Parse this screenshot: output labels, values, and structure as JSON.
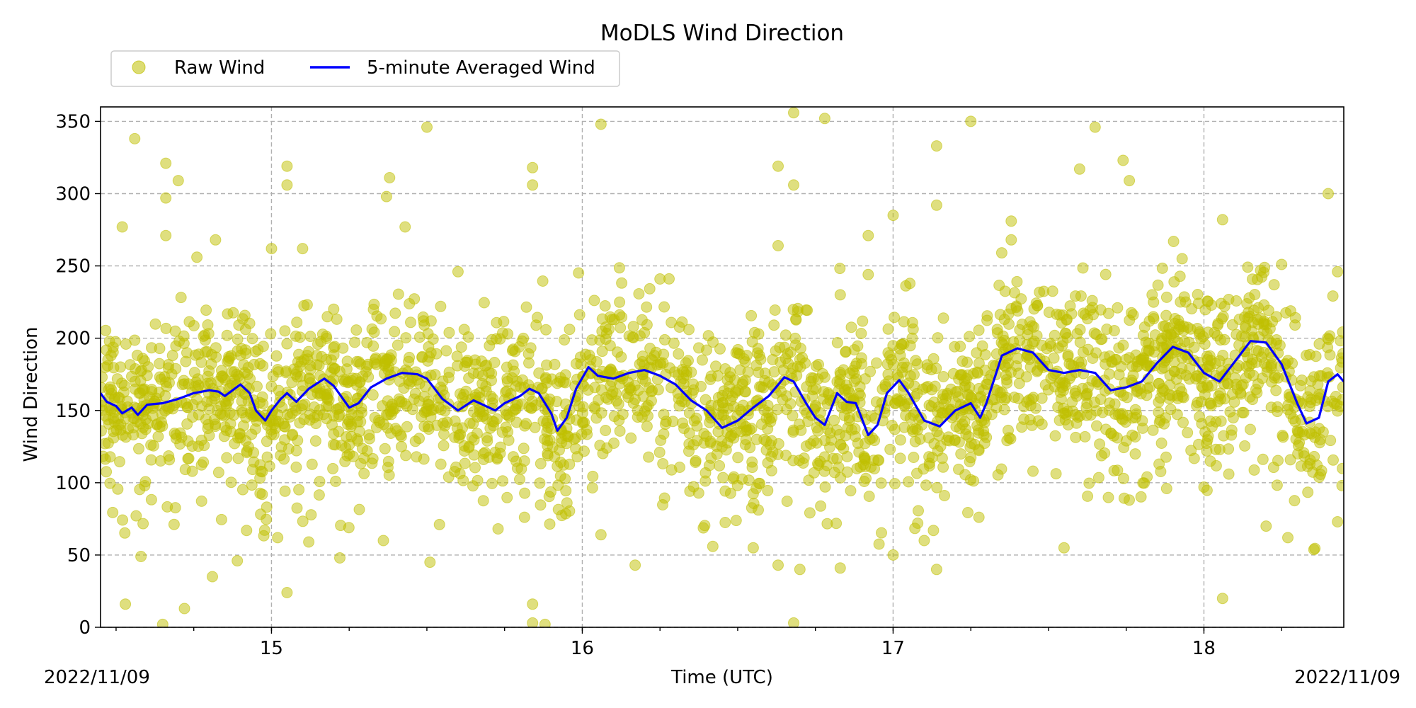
{
  "chart_data": {
    "type": "scatter",
    "title": "MoDLS Wind Direction",
    "xlabel": "Time (UTC)",
    "ylabel": "Wind Direction",
    "xlim": [
      14.45,
      18.45
    ],
    "ylim": [
      0,
      360
    ],
    "x_major_ticks": [
      15,
      16,
      17,
      18
    ],
    "x_tick_labels": [
      "15",
      "16",
      "17",
      "18"
    ],
    "x_minor_step": 0.25,
    "y_ticks": [
      0,
      50,
      100,
      150,
      200,
      250,
      300,
      350
    ],
    "y_tick_labels": [
      "0",
      "50",
      "100",
      "150",
      "200",
      "250",
      "300",
      "350"
    ],
    "x_corner_labels": {
      "left": "2022/11/09",
      "right": "2022/11/09"
    },
    "grid": true,
    "legend": {
      "placement": "top-left outside",
      "entries": [
        {
          "label": "Raw Wind",
          "marker": "circle",
          "color": "#bfbf00"
        },
        {
          "label": "5-minute Averaged Wind",
          "marker": "line",
          "color": "#0000ff"
        }
      ]
    },
    "series": [
      {
        "name": "Raw Wind",
        "kind": "scatter",
        "color": "#bfbf00",
        "dense_band_note": "dense cloud around the averaged line",
        "outliers": [
          [
            14.52,
            277
          ],
          [
            14.53,
            16
          ],
          [
            14.56,
            338
          ],
          [
            14.58,
            49
          ],
          [
            14.65,
            2
          ],
          [
            14.66,
            321
          ],
          [
            14.66,
            297
          ],
          [
            14.66,
            271
          ],
          [
            14.7,
            309
          ],
          [
            14.72,
            13
          ],
          [
            14.76,
            256
          ],
          [
            14.81,
            35
          ],
          [
            14.82,
            268
          ],
          [
            14.89,
            46
          ],
          [
            14.92,
            67
          ],
          [
            15.0,
            262
          ],
          [
            15.02,
            62
          ],
          [
            15.05,
            319
          ],
          [
            15.05,
            306
          ],
          [
            15.05,
            24
          ],
          [
            15.1,
            262
          ],
          [
            15.12,
            59
          ],
          [
            15.22,
            48
          ],
          [
            15.38,
            311
          ],
          [
            15.37,
            298
          ],
          [
            15.36,
            60
          ],
          [
            15.43,
            277
          ],
          [
            15.5,
            346
          ],
          [
            15.51,
            45
          ],
          [
            15.6,
            246
          ],
          [
            15.84,
            318
          ],
          [
            15.84,
            306
          ],
          [
            15.84,
            16
          ],
          [
            15.84,
            3
          ],
          [
            15.88,
            2
          ],
          [
            16.06,
            348
          ],
          [
            16.06,
            64
          ],
          [
            16.17,
            43
          ],
          [
            16.25,
            241
          ],
          [
            16.42,
            56
          ],
          [
            16.55,
            55
          ],
          [
            16.63,
            319
          ],
          [
            16.63,
            264
          ],
          [
            16.63,
            43
          ],
          [
            16.68,
            356
          ],
          [
            16.68,
            306
          ],
          [
            16.68,
            3
          ],
          [
            16.7,
            40
          ],
          [
            16.78,
            352
          ],
          [
            16.83,
            230
          ],
          [
            16.83,
            41
          ],
          [
            16.92,
            271
          ],
          [
            16.92,
            244
          ],
          [
            17.0,
            285
          ],
          [
            17.0,
            50
          ],
          [
            17.1,
            60
          ],
          [
            17.14,
            333
          ],
          [
            17.14,
            292
          ],
          [
            17.14,
            40
          ],
          [
            17.25,
            350
          ],
          [
            17.38,
            281
          ],
          [
            17.38,
            268
          ],
          [
            17.45,
            108
          ],
          [
            17.55,
            55
          ],
          [
            17.6,
            317
          ],
          [
            17.65,
            346
          ],
          [
            17.74,
            323
          ],
          [
            17.76,
            309
          ],
          [
            17.88,
            96
          ],
          [
            17.93,
            255
          ],
          [
            18.0,
            97
          ],
          [
            18.06,
            20
          ],
          [
            18.06,
            282
          ],
          [
            18.08,
            106
          ],
          [
            18.2,
            70
          ],
          [
            18.25,
            251
          ],
          [
            18.27,
            62
          ],
          [
            18.4,
            300
          ],
          [
            18.43,
            246
          ],
          [
            18.43,
            73
          ]
        ]
      },
      {
        "name": "5-minute Averaged Wind",
        "kind": "line",
        "color": "#0000ff",
        "points": [
          [
            14.45,
            162
          ],
          [
            14.47,
            156
          ],
          [
            14.5,
            153
          ],
          [
            14.52,
            148
          ],
          [
            14.55,
            152
          ],
          [
            14.57,
            147
          ],
          [
            14.6,
            154
          ],
          [
            14.65,
            155
          ],
          [
            14.7,
            158
          ],
          [
            14.75,
            162
          ],
          [
            14.8,
            164
          ],
          [
            14.83,
            163
          ],
          [
            14.85,
            160
          ],
          [
            14.9,
            168
          ],
          [
            14.93,
            162
          ],
          [
            14.95,
            150
          ],
          [
            14.98,
            143
          ],
          [
            15.0,
            150
          ],
          [
            15.03,
            158
          ],
          [
            15.05,
            162
          ],
          [
            15.08,
            156
          ],
          [
            15.12,
            165
          ],
          [
            15.17,
            172
          ],
          [
            15.2,
            167
          ],
          [
            15.25,
            152
          ],
          [
            15.28,
            155
          ],
          [
            15.32,
            166
          ],
          [
            15.37,
            172
          ],
          [
            15.42,
            176
          ],
          [
            15.47,
            175
          ],
          [
            15.5,
            172
          ],
          [
            15.55,
            158
          ],
          [
            15.6,
            150
          ],
          [
            15.65,
            157
          ],
          [
            15.68,
            154
          ],
          [
            15.72,
            150
          ],
          [
            15.75,
            155
          ],
          [
            15.8,
            160
          ],
          [
            15.83,
            165
          ],
          [
            15.86,
            162
          ],
          [
            15.9,
            148
          ],
          [
            15.92,
            136
          ],
          [
            15.95,
            145
          ],
          [
            15.98,
            165
          ],
          [
            16.02,
            180
          ],
          [
            16.05,
            174
          ],
          [
            16.1,
            172
          ],
          [
            16.15,
            176
          ],
          [
            16.2,
            178
          ],
          [
            16.25,
            174
          ],
          [
            16.3,
            168
          ],
          [
            16.35,
            157
          ],
          [
            16.4,
            150
          ],
          [
            16.45,
            138
          ],
          [
            16.5,
            143
          ],
          [
            16.55,
            152
          ],
          [
            16.6,
            160
          ],
          [
            16.65,
            173
          ],
          [
            16.68,
            170
          ],
          [
            16.72,
            155
          ],
          [
            16.75,
            145
          ],
          [
            16.78,
            140
          ],
          [
            16.82,
            162
          ],
          [
            16.85,
            156
          ],
          [
            16.88,
            155
          ],
          [
            16.92,
            133
          ],
          [
            16.95,
            140
          ],
          [
            16.98,
            162
          ],
          [
            17.02,
            171
          ],
          [
            17.05,
            162
          ],
          [
            17.1,
            143
          ],
          [
            17.15,
            139
          ],
          [
            17.2,
            150
          ],
          [
            17.25,
            155
          ],
          [
            17.28,
            145
          ],
          [
            17.3,
            155
          ],
          [
            17.35,
            188
          ],
          [
            17.4,
            193
          ],
          [
            17.45,
            190
          ],
          [
            17.5,
            178
          ],
          [
            17.55,
            176
          ],
          [
            17.6,
            178
          ],
          [
            17.65,
            176
          ],
          [
            17.7,
            164
          ],
          [
            17.75,
            166
          ],
          [
            17.8,
            170
          ],
          [
            17.85,
            183
          ],
          [
            17.9,
            194
          ],
          [
            17.95,
            190
          ],
          [
            18.0,
            176
          ],
          [
            18.05,
            170
          ],
          [
            18.1,
            184
          ],
          [
            18.15,
            198
          ],
          [
            18.2,
            197
          ],
          [
            18.25,
            182
          ],
          [
            18.3,
            155
          ],
          [
            18.33,
            141
          ],
          [
            18.37,
            145
          ],
          [
            18.4,
            170
          ],
          [
            18.43,
            175
          ],
          [
            18.45,
            170
          ]
        ]
      }
    ]
  }
}
